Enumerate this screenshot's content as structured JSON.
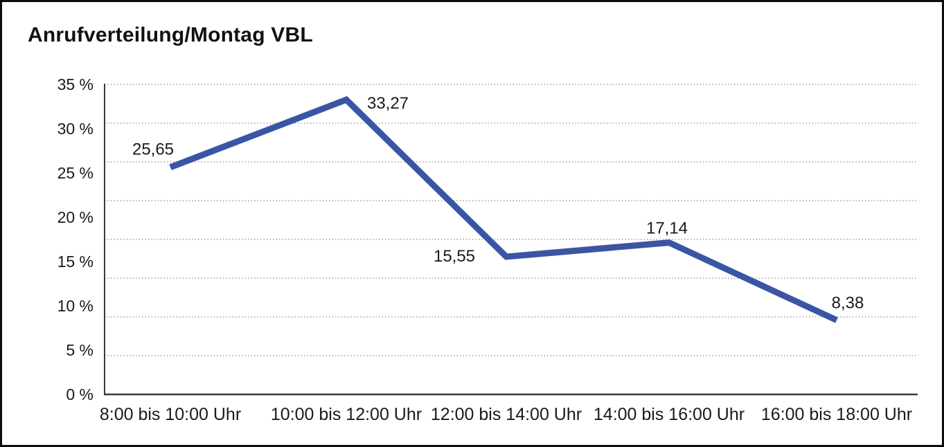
{
  "page": {
    "background": "#ffffff",
    "border_color": "#0b0b0b"
  },
  "chart_data": {
    "type": "line",
    "title": "Anrufverteilung/Montag VBL",
    "categories": [
      "8:00 bis 10:00 Uhr",
      "10:00 bis 12:00 Uhr",
      "12:00 bis 14:00 Uhr",
      "14:00 bis 16:00 Uhr",
      "16:00 bis 18:00 Uhr"
    ],
    "series": [
      {
        "name": "Anrufverteilung Montag VBL",
        "values": [
          25.65,
          33.27,
          15.55,
          17.14,
          8.38
        ],
        "data_labels": [
          "25,65",
          "33,27",
          "15,55",
          "17,14",
          "8,38"
        ],
        "color": "#3a55a4"
      }
    ],
    "xlabel": "",
    "ylabel": "",
    "ylim": [
      0,
      35
    ],
    "y_tick_values": [
      0,
      5,
      10,
      15,
      20,
      25,
      30,
      35
    ],
    "y_tick_labels": [
      "0 %",
      "5 %",
      "10 %",
      "15 %",
      "20 %",
      "25 %",
      "30 %",
      "35 %"
    ],
    "grid": {
      "horizontal": true,
      "style": "dotted",
      "intervals": 8,
      "color": "#8c8c8c"
    },
    "legend": "none",
    "markers": "none",
    "axis_color": "#3a3a3a",
    "text_color": "#1a1a1a"
  }
}
